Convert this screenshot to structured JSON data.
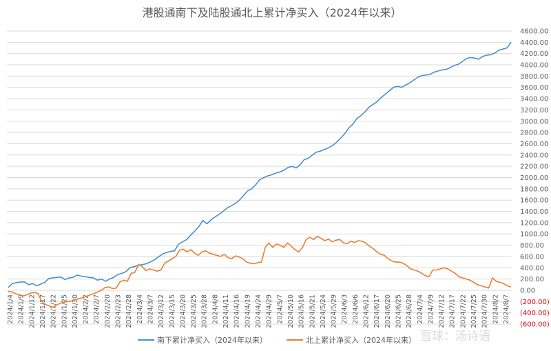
{
  "watermark": "雪球：汤诗语",
  "chart_data": {
    "type": "line",
    "title": "港股通南下及陆股通北上累计净买入（2024年以来）",
    "xlabel": "",
    "ylabel": "",
    "ylim": [
      -600,
      4600
    ],
    "y_ticks": [
      "(600.00)",
      "(400.00)",
      "(200.00)",
      "0.00",
      "200.00",
      "400.00",
      "600.00",
      "800.00",
      "1000.00",
      "1200.00",
      "1400.00",
      "1600.00",
      "1800.00",
      "2000.00",
      "2200.00",
      "2400.00",
      "2600.00",
      "2800.00",
      "3000.00",
      "3200.00",
      "3400.00",
      "3600.00",
      "3800.00",
      "4000.00",
      "4200.00",
      "4400.00",
      "4600.00"
    ],
    "x_ticks": [
      "2024/1/4",
      "2024/1/9",
      "2024/1/12",
      "2024/1/17",
      "2024/1/22",
      "2024/1/25",
      "2024/1/30",
      "2024/2/2",
      "2024/2/7",
      "2024/2/20",
      "2024/2/23",
      "2024/2/28",
      "2024/3/4",
      "2024/3/7",
      "2024/3/12",
      "2024/3/15",
      "2024/3/20",
      "2024/3/25",
      "2024/3/28",
      "2024/4/8",
      "2024/4/11",
      "2024/4/16",
      "2024/4/19",
      "2024/4/24",
      "2024/4/29",
      "2024/5/7",
      "2024/5/10",
      "2024/5/16",
      "2024/5/21",
      "2024/5/24",
      "2024/5/29",
      "2024/6/3",
      "2024/6/6",
      "2024/6/12",
      "2024/6/17",
      "2024/6/20",
      "2024/6/25",
      "2024/6/28",
      "2024/7/4",
      "2024/7/9",
      "2024/7/12",
      "2024/7/17",
      "2024/7/22",
      "2024/7/25",
      "2024/7/30",
      "2024/8/2",
      "2024/8/7"
    ],
    "legend_position": "bottom",
    "grid": true,
    "series": [
      {
        "name": "南下累计净买入（2024年以来）",
        "color": "#4a8fcf",
        "values": [
          50,
          120,
          135,
          148,
          150,
          100,
          120,
          80,
          110,
          140,
          210,
          220,
          230,
          235,
          190,
          220,
          230,
          270,
          250,
          240,
          230,
          220,
          180,
          200,
          160,
          200,
          230,
          280,
          300,
          330,
          400,
          420,
          440,
          455,
          470,
          500,
          540,
          590,
          640,
          670,
          690,
          700,
          820,
          860,
          900,
          980,
          1050,
          1130,
          1240,
          1180,
          1250,
          1300,
          1350,
          1400,
          1460,
          1500,
          1540,
          1600,
          1680,
          1760,
          1800,
          1870,
          1960,
          2000,
          2030,
          2050,
          2080,
          2100,
          2130,
          2180,
          2200,
          2170,
          2230,
          2320,
          2340,
          2400,
          2450,
          2470,
          2500,
          2530,
          2570,
          2630,
          2700,
          2780,
          2880,
          2950,
          3050,
          3100,
          3170,
          3250,
          3300,
          3350,
          3420,
          3480,
          3540,
          3600,
          3620,
          3600,
          3640,
          3680,
          3730,
          3780,
          3810,
          3820,
          3830,
          3870,
          3890,
          3910,
          3920,
          3950,
          3990,
          4010,
          4060,
          4110,
          4130,
          4120,
          4100,
          4150,
          4170,
          4180,
          4210,
          4260,
          4280,
          4300,
          4400
        ]
      },
      {
        "name": "北上累计净买入（2024年以来）",
        "color": "#ed7d31",
        "values": [
          -20,
          -30,
          -60,
          -80,
          -100,
          -80,
          -50,
          -40,
          -60,
          -200,
          -250,
          -280,
          -300,
          -260,
          -230,
          -210,
          -200,
          -190,
          -170,
          -150,
          -130,
          -110,
          -80,
          -60,
          -30,
          0,
          50,
          60,
          30,
          40,
          150,
          180,
          160,
          300,
          320,
          460,
          420,
          350,
          380,
          360,
          340,
          360,
          480,
          520,
          560,
          600,
          710,
          730,
          680,
          720,
          660,
          620,
          680,
          700,
          660,
          640,
          620,
          600,
          640,
          580,
          560,
          610,
          590,
          560,
          500,
          480,
          470,
          490,
          500,
          760,
          840,
          760,
          820,
          800,
          760,
          840,
          780,
          720,
          680,
          760,
          900,
          940,
          900,
          960,
          920,
          880,
          910,
          860,
          890,
          900,
          840,
          830,
          870,
          850,
          880,
          870,
          840,
          780,
          740,
          680,
          640,
          620,
          560,
          520,
          500,
          500,
          480,
          440,
          380,
          360,
          340,
          300,
          260,
          240,
          360,
          360,
          380,
          400,
          380,
          340,
          300,
          240,
          220,
          200,
          180,
          140,
          100,
          80,
          60,
          40,
          220,
          160,
          140,
          120,
          80,
          60
        ]
      }
    ]
  }
}
